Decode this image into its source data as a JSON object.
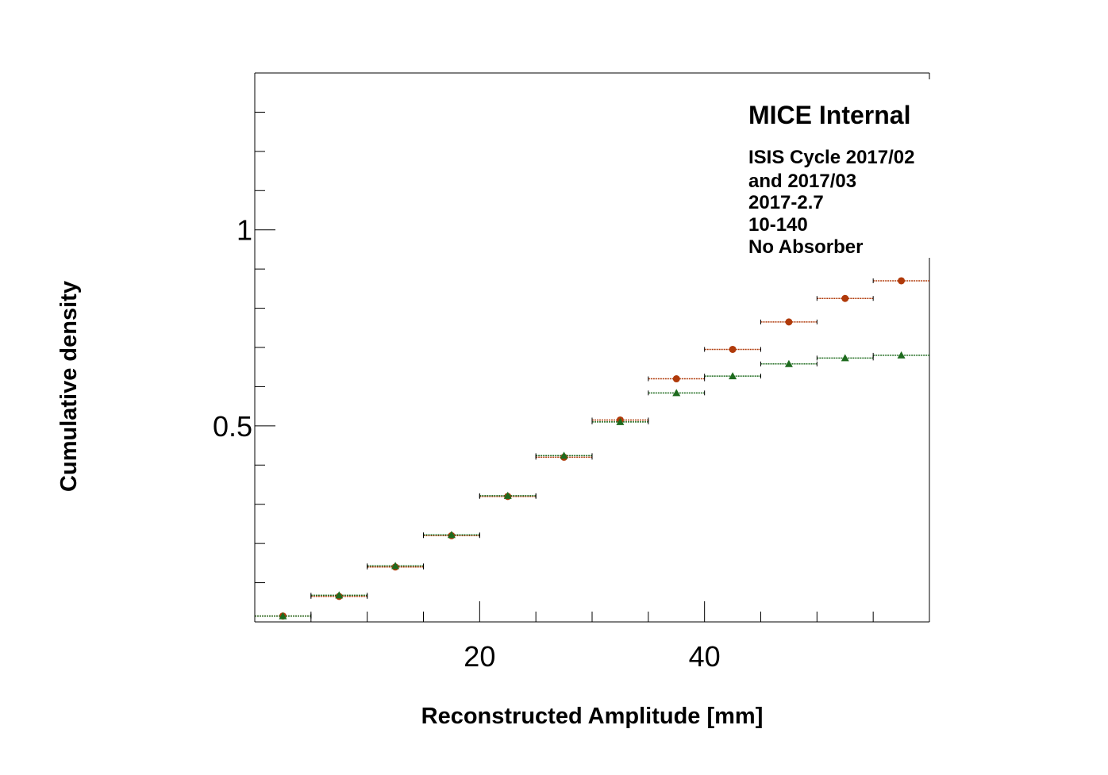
{
  "chart_data": {
    "type": "scatter",
    "title": "",
    "xlabel": "Reconstructed Amplitude [mm]",
    "ylabel": "Cumulative density",
    "xlim": [
      0,
      60
    ],
    "ylim": [
      0.0,
      1.4
    ],
    "x_ticks": [
      20,
      40
    ],
    "y_ticks": [
      0.5,
      1
    ],
    "y_tick_labels": [
      "0.5",
      "1"
    ],
    "x_minor_step": 5,
    "y_minor_step": 0.1,
    "grid": false,
    "annotations": {
      "header": "MICE Internal",
      "lines": [
        "ISIS Cycle 2017/02",
        "and 2017/03",
        "2017-2.7",
        "10-140",
        "No Absorber"
      ]
    },
    "bin_width": 5,
    "x": [
      2.5,
      7.5,
      12.5,
      17.5,
      22.5,
      27.5,
      32.5,
      37.5,
      42.5,
      47.5,
      52.5,
      57.5
    ],
    "series": [
      {
        "color": "#b03a0a",
        "marker": "circle",
        "values": [
          0.015,
          0.065,
          0.14,
          0.22,
          0.32,
          0.42,
          0.515,
          0.62,
          0.695,
          0.765,
          0.825,
          0.87
        ]
      },
      {
        "color": "#1e6b1e",
        "marker": "triangle",
        "values": [
          0.015,
          0.068,
          0.143,
          0.222,
          0.322,
          0.424,
          0.51,
          0.584,
          0.627,
          0.658,
          0.673,
          0.68
        ]
      }
    ]
  }
}
